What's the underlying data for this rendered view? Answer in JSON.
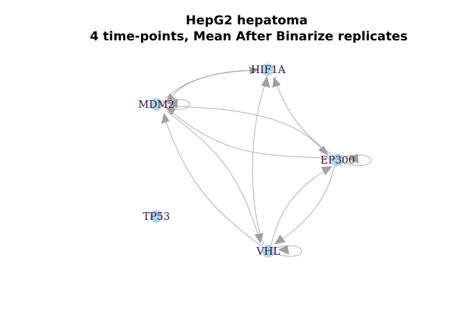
{
  "title": {
    "line1": "HepG2 hepatoma",
    "line2": "4 time-points, Mean After Binarize replicates"
  },
  "colors": {
    "node": "#add8e6",
    "edge": "#aaaaaa",
    "arrow": "#a0a0a0",
    "label": "#3b0a45"
  },
  "nodes": [
    {
      "id": "HIF1A",
      "label": "HIF1A"
    },
    {
      "id": "MDM2",
      "label": "MDM2"
    },
    {
      "id": "EP300",
      "label": "EP300"
    },
    {
      "id": "TP53",
      "label": "TP53"
    },
    {
      "id": "VHL",
      "label": "VHL"
    }
  ],
  "edges": [
    {
      "from": "MDM2",
      "to": "HIF1A"
    },
    {
      "from": "HIF1A",
      "to": "MDM2"
    },
    {
      "from": "MDM2",
      "to": "MDM2"
    },
    {
      "from": "MDM2",
      "to": "EP300"
    },
    {
      "from": "EP300",
      "to": "MDM2"
    },
    {
      "from": "EP300",
      "to": "HIF1A"
    },
    {
      "from": "EP300",
      "to": "EP300"
    },
    {
      "from": "VHL",
      "to": "HIF1A"
    },
    {
      "from": "VHL",
      "to": "MDM2"
    },
    {
      "from": "MDM2",
      "to": "VHL"
    },
    {
      "from": "VHL",
      "to": "EP300"
    },
    {
      "from": "EP300",
      "to": "VHL"
    },
    {
      "from": "VHL",
      "to": "VHL"
    }
  ]
}
